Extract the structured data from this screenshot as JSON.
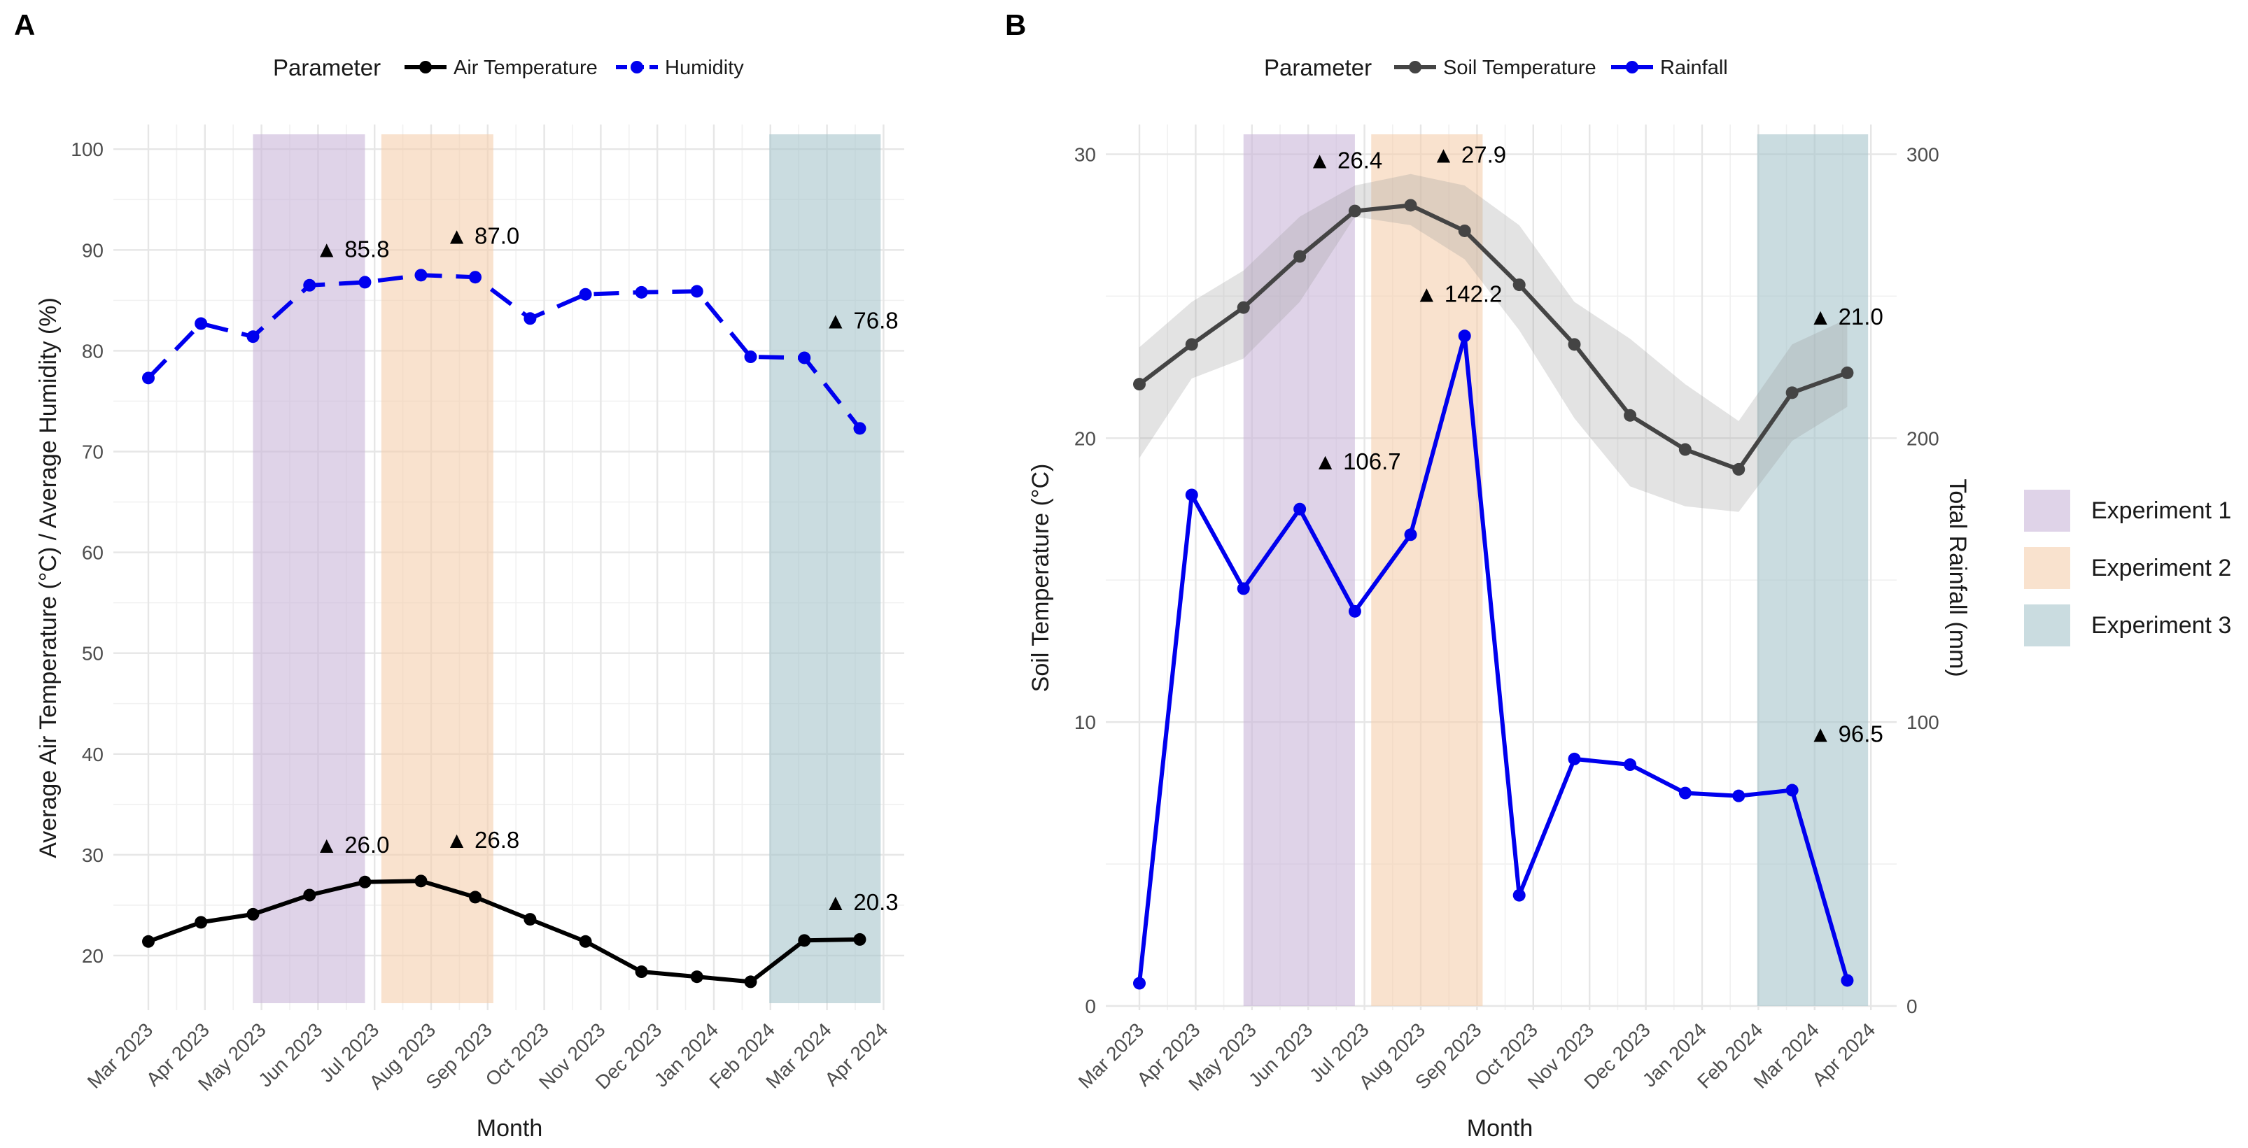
{
  "figure_panels": [
    "A",
    "B"
  ],
  "shared_legend": {
    "items": [
      {
        "label": "Experiment 1",
        "color": "#c9b6d9"
      },
      {
        "label": "Experiment 2",
        "color": "#f5cfae"
      },
      {
        "label": "Experiment 3",
        "color": "#a7c4cc"
      }
    ]
  },
  "chart_data": [
    {
      "panel": "A",
      "type": "line",
      "title": "",
      "legend_title": "Parameter",
      "xlabel": "Month",
      "ylabel": "Average Air Temperature (°C) / Average Humidity (%)",
      "categories": [
        "Mar 2023",
        "Apr 2023",
        "May 2023",
        "Jun 2023",
        "Jul 2023",
        "Aug 2023",
        "Sep 2023",
        "Oct 2023",
        "Nov 2023",
        "Dec 2023",
        "Jan 2024",
        "Feb 2024",
        "Mar 2024",
        "Apr 2024"
      ],
      "ylim": [
        15,
        103
      ],
      "yticks": [
        20,
        30,
        40,
        50,
        60,
        70,
        80,
        90,
        100
      ],
      "series": [
        {
          "name": "Air Temperature",
          "color": "#000000",
          "style": "solid",
          "x": [
            0.0,
            0.93,
            1.85,
            2.85,
            3.83,
            4.82,
            5.78,
            6.75,
            7.73,
            8.72,
            9.7,
            10.65,
            11.6,
            12.58
          ],
          "values": [
            21.4,
            23.3,
            24.1,
            26.0,
            27.3,
            27.4,
            25.8,
            23.6,
            21.4,
            18.4,
            17.9,
            17.4,
            21.5,
            21.6
          ]
        },
        {
          "name": "Humidity",
          "color": "#0000ee",
          "style": "dashed",
          "x": [
            0.0,
            0.93,
            1.85,
            2.85,
            3.83,
            4.82,
            5.78,
            6.75,
            7.73,
            8.72,
            9.7,
            10.65,
            11.6,
            12.58
          ],
          "values": [
            77.3,
            82.7,
            81.4,
            86.5,
            86.8,
            87.5,
            87.3,
            83.2,
            85.6,
            85.8,
            85.9,
            79.4,
            79.3,
            72.3
          ]
        }
      ],
      "bands": [
        {
          "label": "Experiment 1",
          "color": "#c9b6d9",
          "x0": 1.85,
          "x1": 3.83
        },
        {
          "label": "Experiment 2",
          "color": "#f5cfae",
          "x0": 4.12,
          "x1": 6.1
        },
        {
          "label": "Experiment 3",
          "color": "#a7c4cc",
          "x0": 10.98,
          "x1": 12.95
        }
      ],
      "annotations": [
        {
          "text": "▲ 85.8",
          "x": 2.95,
          "y": 89.3
        },
        {
          "text": "▲ 87.0",
          "x": 5.25,
          "y": 90.6
        },
        {
          "text": "▲ 76.8",
          "x": 11.95,
          "y": 82.2
        },
        {
          "text": "▲ 26.0",
          "x": 2.95,
          "y": 30.2
        },
        {
          "text": "▲ 26.8",
          "x": 5.25,
          "y": 30.7
        },
        {
          "text": "▲ 20.3",
          "x": 11.95,
          "y": 24.5
        }
      ]
    },
    {
      "panel": "B",
      "type": "line",
      "title": "",
      "legend_title": "Parameter",
      "xlabel": "Month",
      "ylabel": "Soil Temperature (°C)",
      "y2label": "Total Rainfall (mm)",
      "categories": [
        "Mar 2023",
        "Apr 2023",
        "May 2023",
        "Jun 2023",
        "Jul 2023",
        "Aug 2023",
        "Sep 2023",
        "Oct 2023",
        "Nov 2023",
        "Dec 2023",
        "Jan 2024",
        "Feb 2024",
        "Mar 2024",
        "Apr 2024"
      ],
      "ylim": [
        0,
        30.7
      ],
      "yticks": [
        0,
        10,
        20,
        30
      ],
      "y2lim": [
        0,
        307
      ],
      "y2ticks": [
        0,
        100,
        200,
        300
      ],
      "series": [
        {
          "name": "Soil Temperature",
          "color": "#444444",
          "axis": "left",
          "x": [
            0.0,
            0.93,
            1.85,
            2.85,
            3.83,
            4.82,
            5.78,
            6.75,
            7.73,
            8.72,
            9.7,
            10.65,
            11.6,
            12.58
          ],
          "values": [
            21.9,
            23.3,
            24.6,
            26.4,
            28.0,
            28.2,
            27.3,
            25.4,
            23.3,
            20.8,
            19.6,
            18.9,
            21.6,
            22.3
          ],
          "ribbon_upper": [
            23.2,
            24.8,
            25.9,
            27.8,
            28.9,
            29.3,
            28.9,
            27.5,
            24.8,
            23.5,
            21.9,
            20.6,
            23.3,
            24.2
          ],
          "ribbon_lower": [
            19.3,
            22.1,
            22.8,
            24.8,
            27.8,
            27.5,
            26.3,
            23.8,
            20.7,
            18.3,
            17.6,
            17.4,
            19.9,
            21.1
          ]
        },
        {
          "name": "Rainfall",
          "color": "#0000ee",
          "axis": "right",
          "x": [
            0.0,
            0.93,
            1.85,
            2.85,
            3.83,
            4.82,
            5.78,
            6.75,
            7.73,
            8.72,
            9.7,
            10.65,
            11.6,
            12.58
          ],
          "values": [
            8,
            180,
            147,
            175,
            139,
            166,
            236,
            39,
            87,
            85,
            75,
            74,
            76,
            9
          ]
        }
      ],
      "bands": [
        {
          "label": "Experiment 1",
          "color": "#c9b6d9",
          "x0": 1.85,
          "x1": 3.83
        },
        {
          "label": "Experiment 2",
          "color": "#f5cfae",
          "x0": 4.12,
          "x1": 6.1
        },
        {
          "label": "Experiment 3",
          "color": "#a7c4cc",
          "x0": 10.98,
          "x1": 12.95
        }
      ],
      "annotations": [
        {
          "text": "▲ 26.4",
          "x": 3.0,
          "y": 29.5
        },
        {
          "text": "▲ 27.9",
          "x": 5.2,
          "y": 29.7
        },
        {
          "text": "▲ 142.2",
          "x": 4.9,
          "y": 24.8
        },
        {
          "text": "▲ 106.7",
          "x": 3.1,
          "y": 18.9
        },
        {
          "text": "▲ 21.0",
          "x": 11.9,
          "y": 24.0
        },
        {
          "text": "▲ 96.5",
          "x": 11.9,
          "y": 9.3
        }
      ]
    }
  ]
}
